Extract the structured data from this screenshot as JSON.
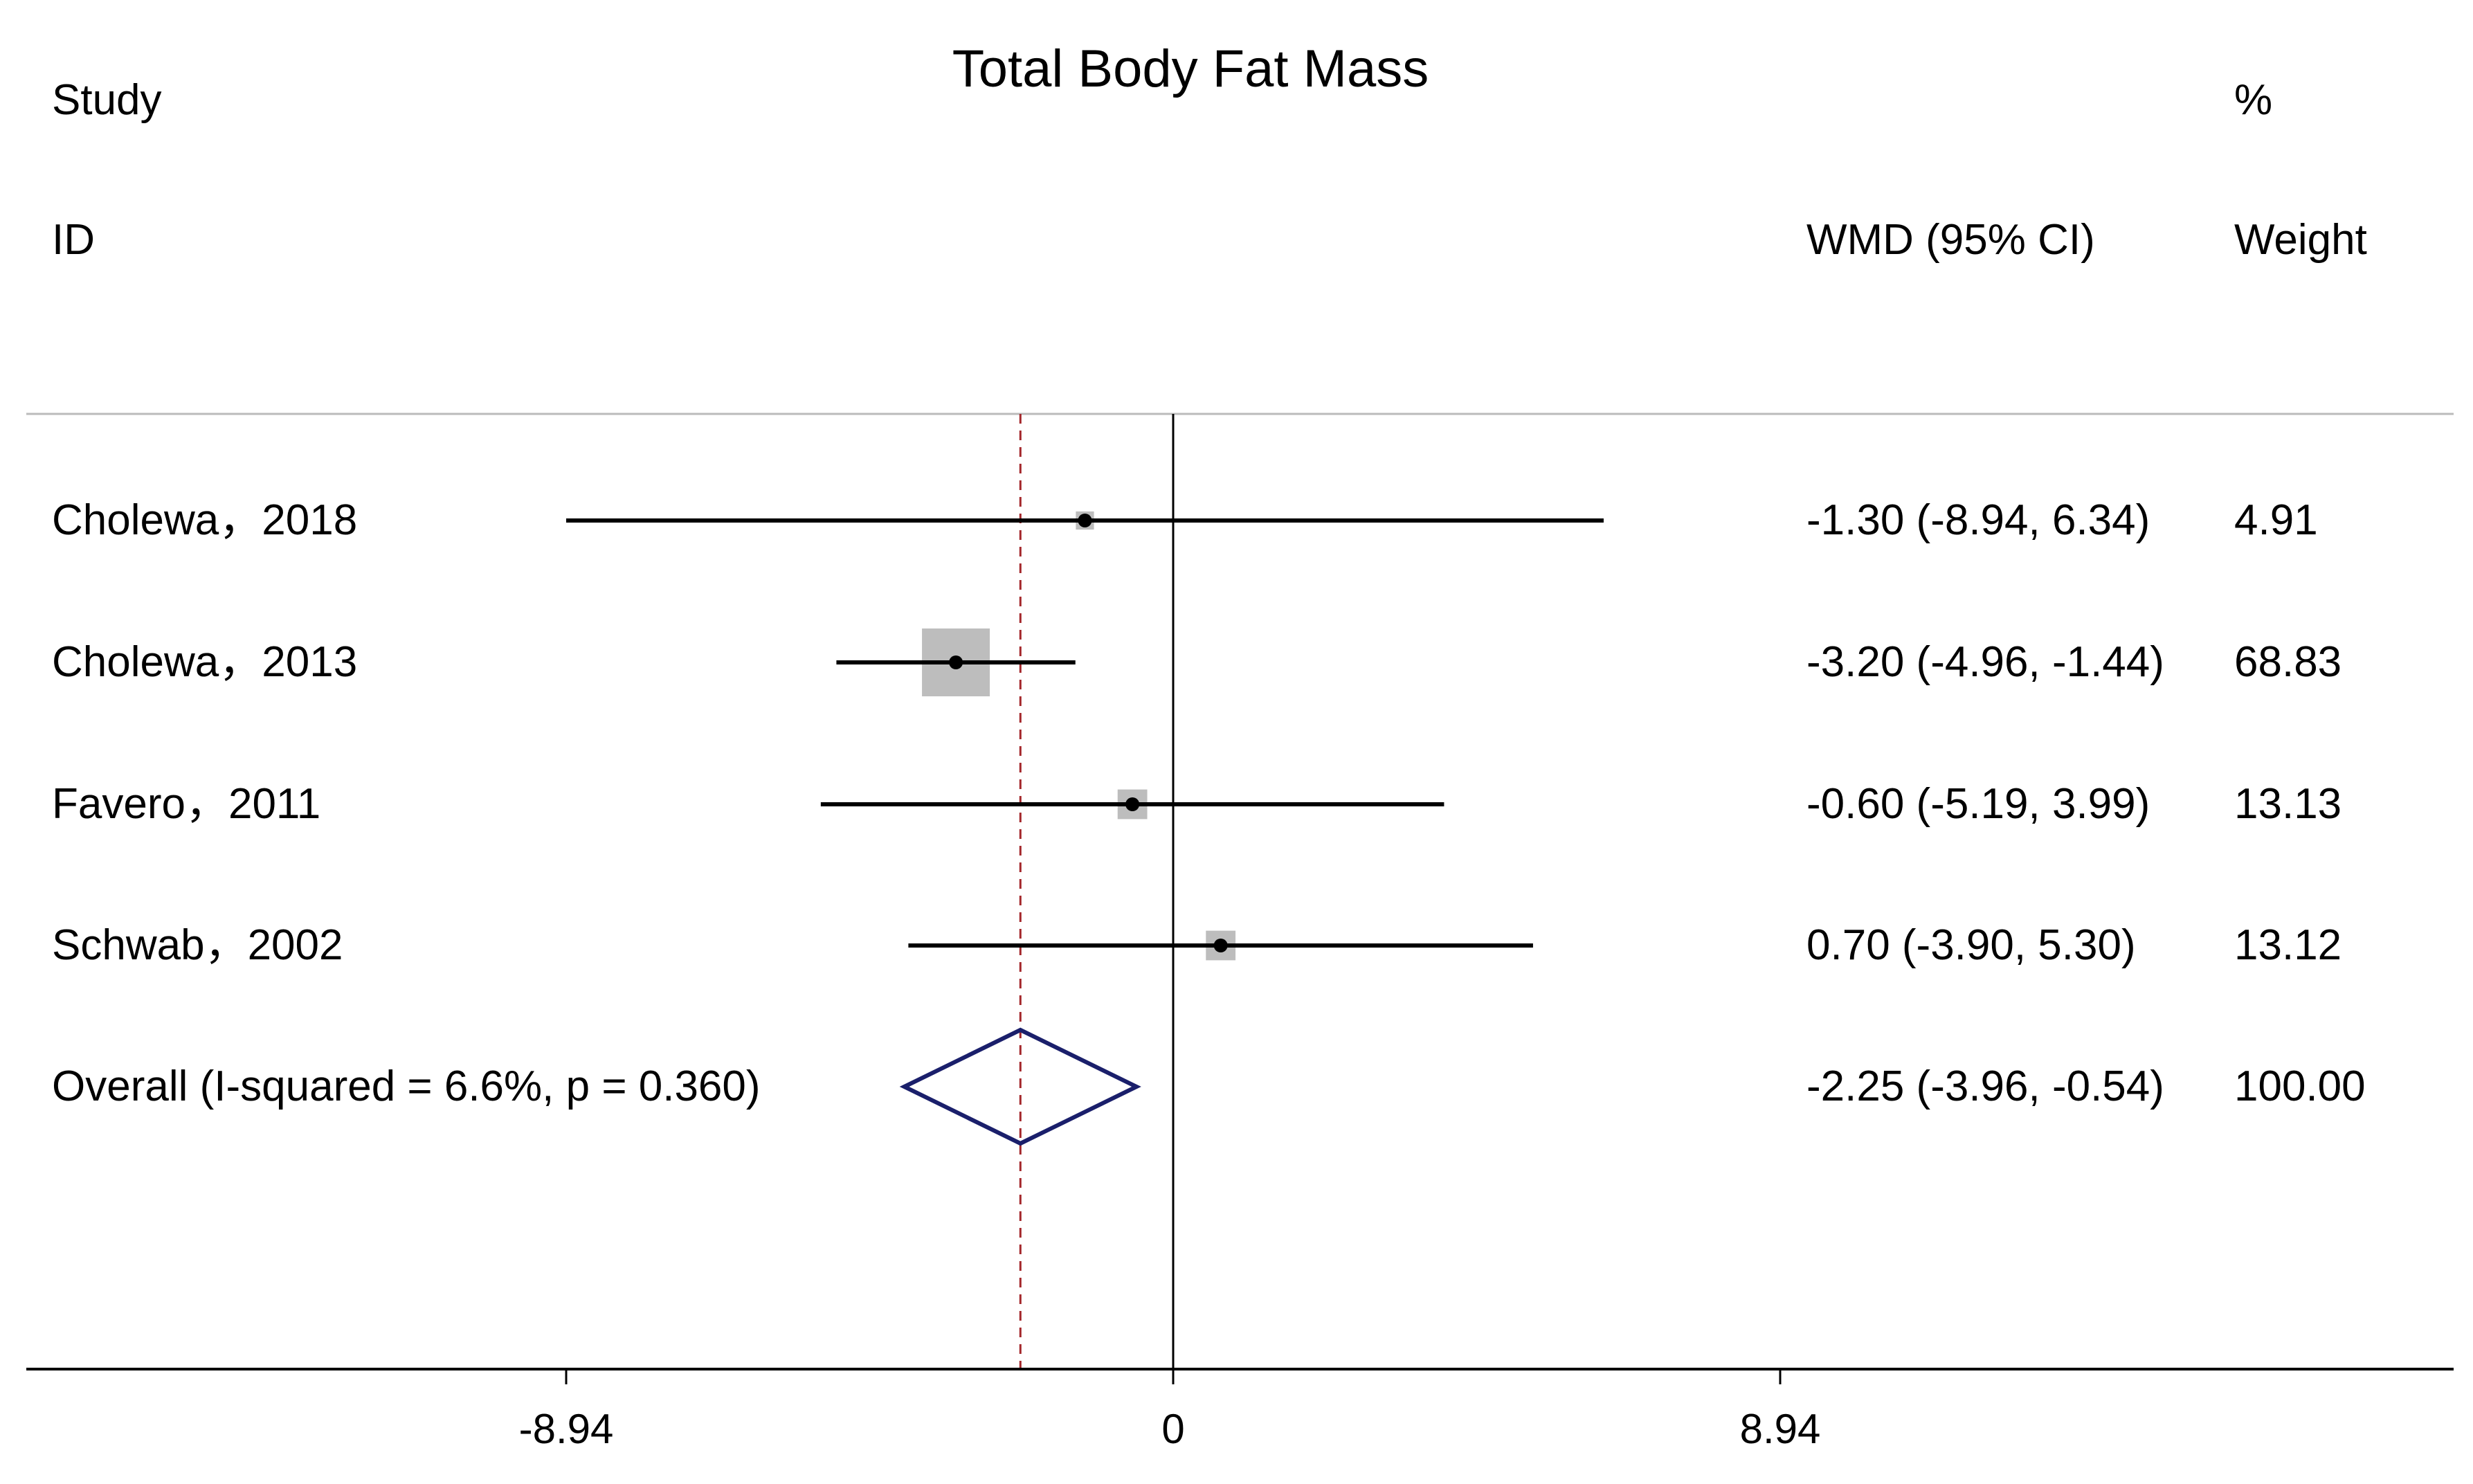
{
  "chart_data": {
    "type": "forest",
    "title": "Total Body Fat Mass",
    "headers": {
      "study_line1": "Study",
      "study_line2": "ID",
      "effect": "WMD (95% CI)",
      "weight_line1": "%",
      "weight_line2": "Weight"
    },
    "studies": [
      {
        "label": "Cholewa，2018",
        "estimate": -1.3,
        "ci_low": -8.94,
        "ci_high": 6.34,
        "ci_text": "-1.30 (-8.94, 6.34)",
        "weight": 4.91,
        "weight_text": "4.91"
      },
      {
        "label": "Cholewa，2013",
        "estimate": -3.2,
        "ci_low": -4.96,
        "ci_high": -1.44,
        "ci_text": "-3.20 (-4.96, -1.44)",
        "weight": 68.83,
        "weight_text": "68.83"
      },
      {
        "label": "Favero，2011",
        "estimate": -0.6,
        "ci_low": -5.19,
        "ci_high": 3.99,
        "ci_text": "-0.60 (-5.19, 3.99)",
        "weight": 13.13,
        "weight_text": "13.13"
      },
      {
        "label": "Schwab，2002",
        "estimate": 0.7,
        "ci_low": -3.9,
        "ci_high": 5.3,
        "ci_text": "0.70 (-3.90, 5.30)",
        "weight": 13.12,
        "weight_text": "13.12"
      }
    ],
    "overall": {
      "label": "Overall  (I-squared = 6.6%, p = 0.360)",
      "estimate": -2.25,
      "ci_low": -3.96,
      "ci_high": -0.54,
      "ci_text": "-2.25 (-3.96, -0.54)",
      "weight": 100.0,
      "weight_text": "100.00"
    },
    "x_ticks": [
      {
        "value": -8.94,
        "label": "-8.94"
      },
      {
        "value": 0,
        "label": "0"
      },
      {
        "value": 8.94,
        "label": "8.94"
      }
    ],
    "null_line": 0,
    "colors": {
      "ci_line": "#000000",
      "weight_box": "#bdbdbd",
      "diamond": "#1a1f6b",
      "overall_line": "#a3262a",
      "divider": "#bbbbbb"
    }
  }
}
